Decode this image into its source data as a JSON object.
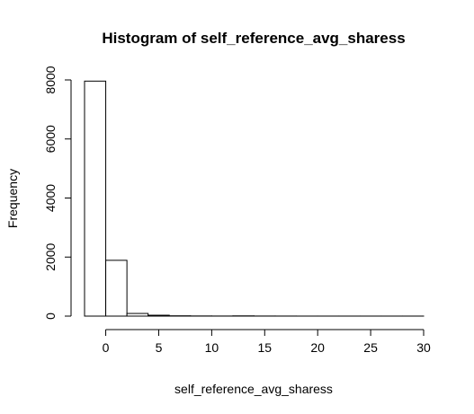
{
  "chart_data": {
    "type": "bar",
    "title": "Histogram of self_reference_avg_sharess",
    "xlabel": "self_reference_avg_sharess",
    "ylabel": "Frequency",
    "bins": [
      {
        "x0": -2,
        "x1": 0,
        "count": 7960
      },
      {
        "x0": 0,
        "x1": 2,
        "count": 1890
      },
      {
        "x0": 2,
        "x1": 4,
        "count": 90
      },
      {
        "x0": 4,
        "x1": 6,
        "count": 30
      },
      {
        "x0": 6,
        "x1": 8,
        "count": 10
      },
      {
        "x0": 8,
        "x1": 10,
        "count": 5
      },
      {
        "x0": 10,
        "x1": 12,
        "count": 3
      },
      {
        "x0": 12,
        "x1": 14,
        "count": 8
      },
      {
        "x0": 14,
        "x1": 16,
        "count": 3
      },
      {
        "x0": 16,
        "x1": 18,
        "count": 2
      },
      {
        "x0": 18,
        "x1": 20,
        "count": 1
      },
      {
        "x0": 20,
        "x1": 22,
        "count": 1
      },
      {
        "x0": 22,
        "x1": 24,
        "count": 1
      },
      {
        "x0": 24,
        "x1": 26,
        "count": 1
      },
      {
        "x0": 26,
        "x1": 28,
        "count": 1
      },
      {
        "x0": 28,
        "x1": 30,
        "count": 1
      }
    ],
    "x_ticks": [
      0,
      5,
      10,
      15,
      20,
      25,
      30
    ],
    "y_ticks": [
      0,
      2000,
      4000,
      6000,
      8000
    ],
    "xlim": [
      -2,
      30
    ],
    "ylim": [
      0,
      8000
    ],
    "grid": false,
    "legend": "none",
    "bar_fill": "#ffffff",
    "bar_stroke": "#000000"
  }
}
